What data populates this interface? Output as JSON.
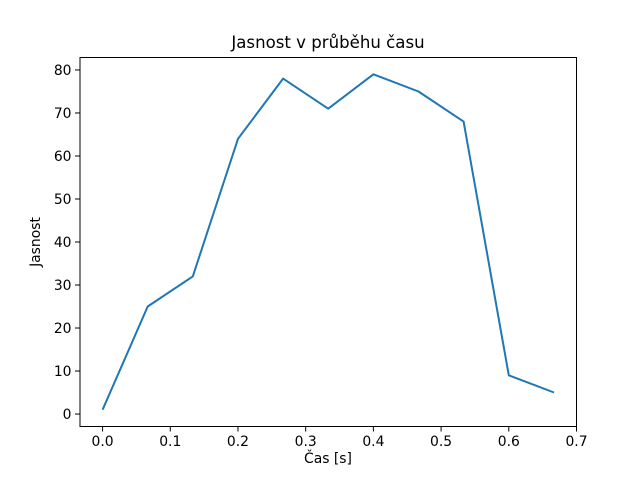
{
  "chart_data": {
    "type": "line",
    "title": "Jasnost v průběhu času",
    "xlabel": "Čas [s]",
    "ylabel": "Jasnost",
    "x": [
      0,
      0.0667,
      0.1333,
      0.2,
      0.2667,
      0.3333,
      0.4,
      0.4667,
      0.5333,
      0.6,
      0.6667
    ],
    "y": [
      1,
      25,
      32,
      64,
      78,
      71,
      79,
      75,
      68,
      9,
      5
    ],
    "xticks": [
      0.0,
      0.1,
      0.2,
      0.3,
      0.4,
      0.5,
      0.6,
      0.7
    ],
    "xtick_labels": [
      "0.0",
      "0.1",
      "0.2",
      "0.3",
      "0.4",
      "0.5",
      "0.6",
      "0.7"
    ],
    "yticks": [
      0,
      10,
      20,
      30,
      40,
      50,
      60,
      70,
      80
    ],
    "ytick_labels": [
      "0",
      "10",
      "20",
      "30",
      "40",
      "50",
      "60",
      "70",
      "80"
    ],
    "xlim": [
      -0.03333,
      0.7
    ],
    "ylim": [
      -2.9,
      82.9
    ],
    "line_color": "#1f77b4",
    "spine_color": "#000000",
    "text_color": "#000000",
    "grid": false,
    "legend": null
  }
}
